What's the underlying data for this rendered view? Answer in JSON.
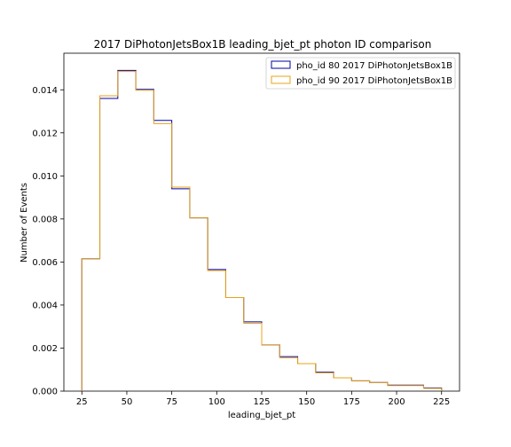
{
  "chart_data": {
    "type": "step-histogram",
    "title": "2017 DiPhotonJetsBox1B leading_bjet_pt photon ID comparison",
    "xlabel": "leading_bjet_pt",
    "ylabel": "Number of Events",
    "xlim": [
      15,
      235
    ],
    "ylim": [
      0,
      0.0157
    ],
    "x_ticks": [
      25,
      50,
      75,
      100,
      125,
      150,
      175,
      200,
      225
    ],
    "x_tick_labels": [
      "25",
      "50",
      "75",
      "100",
      "125",
      "150",
      "175",
      "200",
      "225"
    ],
    "y_ticks": [
      0,
      0.002,
      0.004,
      0.006,
      0.008,
      0.01,
      0.012,
      0.014
    ],
    "y_tick_labels": [
      "0.000",
      "0.002",
      "0.004",
      "0.006",
      "0.008",
      "0.010",
      "0.012",
      "0.014"
    ],
    "bin_edges": [
      25,
      35,
      45,
      55,
      65,
      75,
      85,
      95,
      105,
      115,
      125,
      135,
      145,
      155,
      165,
      175,
      185,
      195,
      205,
      215,
      225
    ],
    "series": [
      {
        "name": "pho_id 80 2017 DiPhotonJetsBox1B",
        "color": "#0000aa",
        "values": [
          0.00615,
          0.0136,
          0.0149,
          0.01402,
          0.01258,
          0.0094,
          0.00805,
          0.00565,
          0.00435,
          0.00322,
          0.00215,
          0.0016,
          0.00128,
          0.00088,
          0.00062,
          0.00048,
          0.0004,
          0.00028,
          0.00028,
          0.00015
        ]
      },
      {
        "name": "pho_id 90 2017 DiPhotonJetsBox1B",
        "color": "#e8a317",
        "values": [
          0.00615,
          0.01372,
          0.01485,
          0.01398,
          0.01243,
          0.00948,
          0.00805,
          0.0056,
          0.00435,
          0.00315,
          0.00215,
          0.00155,
          0.00128,
          0.00085,
          0.00062,
          0.00048,
          0.0004,
          0.00026,
          0.00026,
          0.00013
        ]
      }
    ],
    "legend_position": "top-right",
    "grid": false
  }
}
